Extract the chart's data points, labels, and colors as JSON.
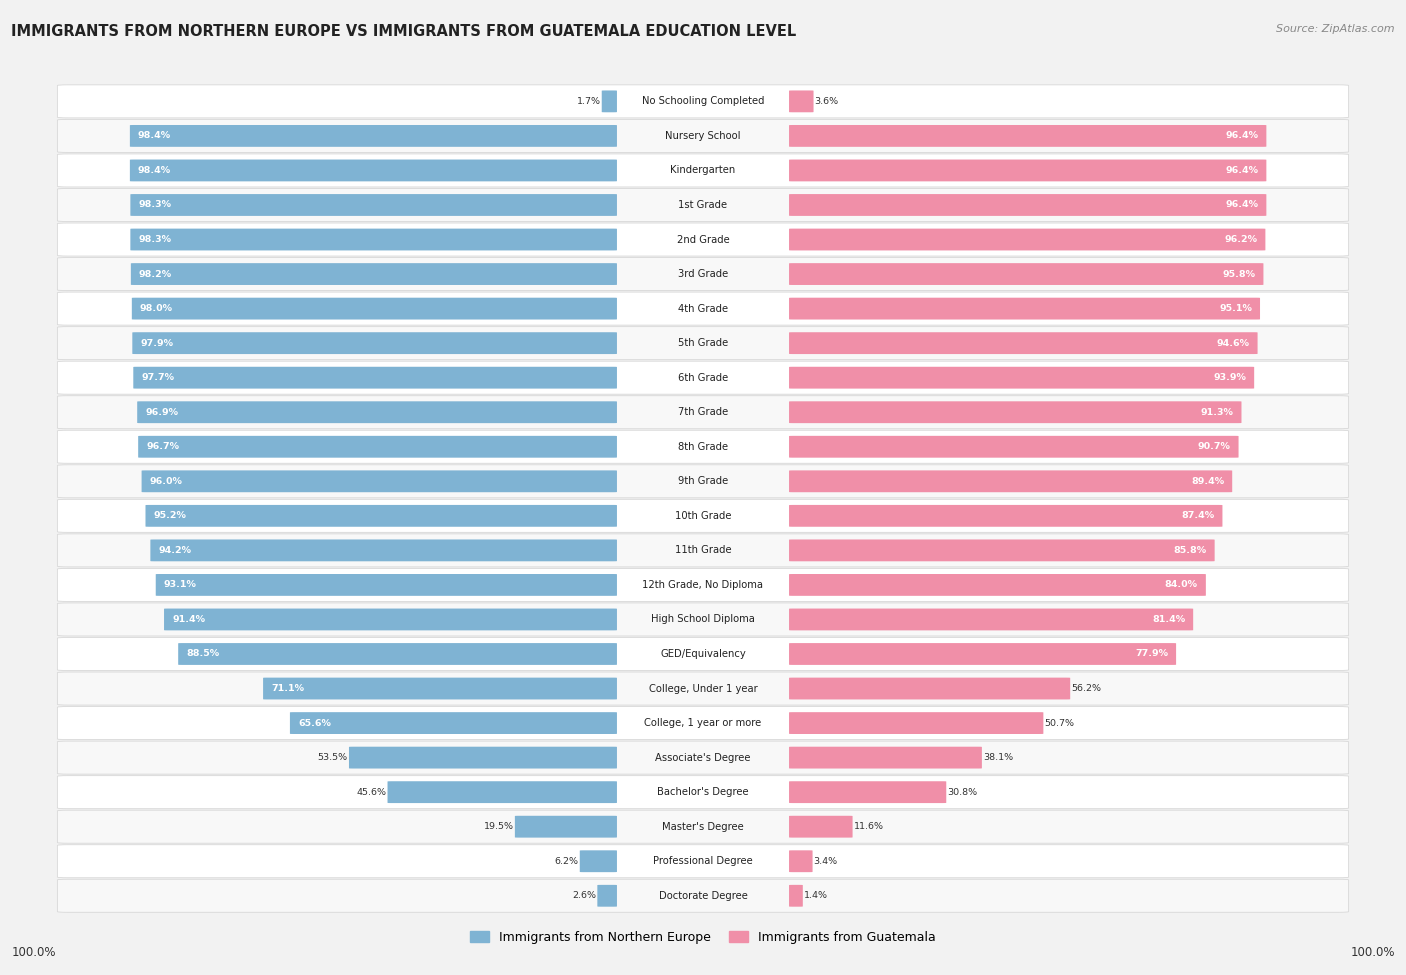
{
  "title": "IMMIGRANTS FROM NORTHERN EUROPE VS IMMIGRANTS FROM GUATEMALA EDUCATION LEVEL",
  "source": "Source: ZipAtlas.com",
  "categories": [
    "No Schooling Completed",
    "Nursery School",
    "Kindergarten",
    "1st Grade",
    "2nd Grade",
    "3rd Grade",
    "4th Grade",
    "5th Grade",
    "6th Grade",
    "7th Grade",
    "8th Grade",
    "9th Grade",
    "10th Grade",
    "11th Grade",
    "12th Grade, No Diploma",
    "High School Diploma",
    "GED/Equivalency",
    "College, Under 1 year",
    "College, 1 year or more",
    "Associate's Degree",
    "Bachelor's Degree",
    "Master's Degree",
    "Professional Degree",
    "Doctorate Degree"
  ],
  "northern_europe": [
    1.7,
    98.4,
    98.4,
    98.3,
    98.3,
    98.2,
    98.0,
    97.9,
    97.7,
    96.9,
    96.7,
    96.0,
    95.2,
    94.2,
    93.1,
    91.4,
    88.5,
    71.1,
    65.6,
    53.5,
    45.6,
    19.5,
    6.2,
    2.6
  ],
  "guatemala": [
    3.6,
    96.4,
    96.4,
    96.4,
    96.2,
    95.8,
    95.1,
    94.6,
    93.9,
    91.3,
    90.7,
    89.4,
    87.4,
    85.8,
    84.0,
    81.4,
    77.9,
    56.2,
    50.7,
    38.1,
    30.8,
    11.6,
    3.4,
    1.4
  ],
  "color_northern": "#7fb3d3",
  "color_guatemala": "#f08fa8",
  "row_bg_color": "#f5f5f5",
  "row_bg_alt": "#ffffff",
  "bg_color": "#f2f2f2",
  "legend_northern": "Immigrants from Northern Europe",
  "legend_guatemala": "Immigrants from Guatemala",
  "inside_label_threshold": 65.0
}
